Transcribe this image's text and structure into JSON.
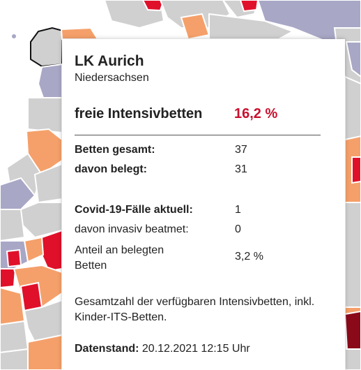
{
  "district": {
    "name": "LK Aurich",
    "state": "Niedersachsen"
  },
  "headline": {
    "label": "freie Intensivbetten",
    "value": "16,2 %"
  },
  "beds": {
    "total_label": "Betten gesamt:",
    "total_value": "37",
    "occupied_label": "davon belegt:",
    "occupied_value": "31"
  },
  "covid": {
    "current_label": "Covid-19-Fälle aktuell:",
    "current_value": "1",
    "invasive_label": "davon invasiv beatmet:",
    "invasive_value": "0",
    "share_label": "Anteil an belegten Betten",
    "share_value": "3,2 %"
  },
  "note": "Gesamtzahl der verfügbaren Intensivbetten, inkl. Kinder-ITS-Betten.",
  "data_stand": {
    "label": "Datenstand:",
    "value": "20.12.2021 12:15 Uhr"
  },
  "colors": {
    "accent_red": "#c8102e",
    "map_grey": "#d0d0d0",
    "map_purple": "#a8a7c6",
    "map_orange": "#f5a06a",
    "map_red": "#e0102a",
    "map_darkred": "#8b0a1a"
  }
}
